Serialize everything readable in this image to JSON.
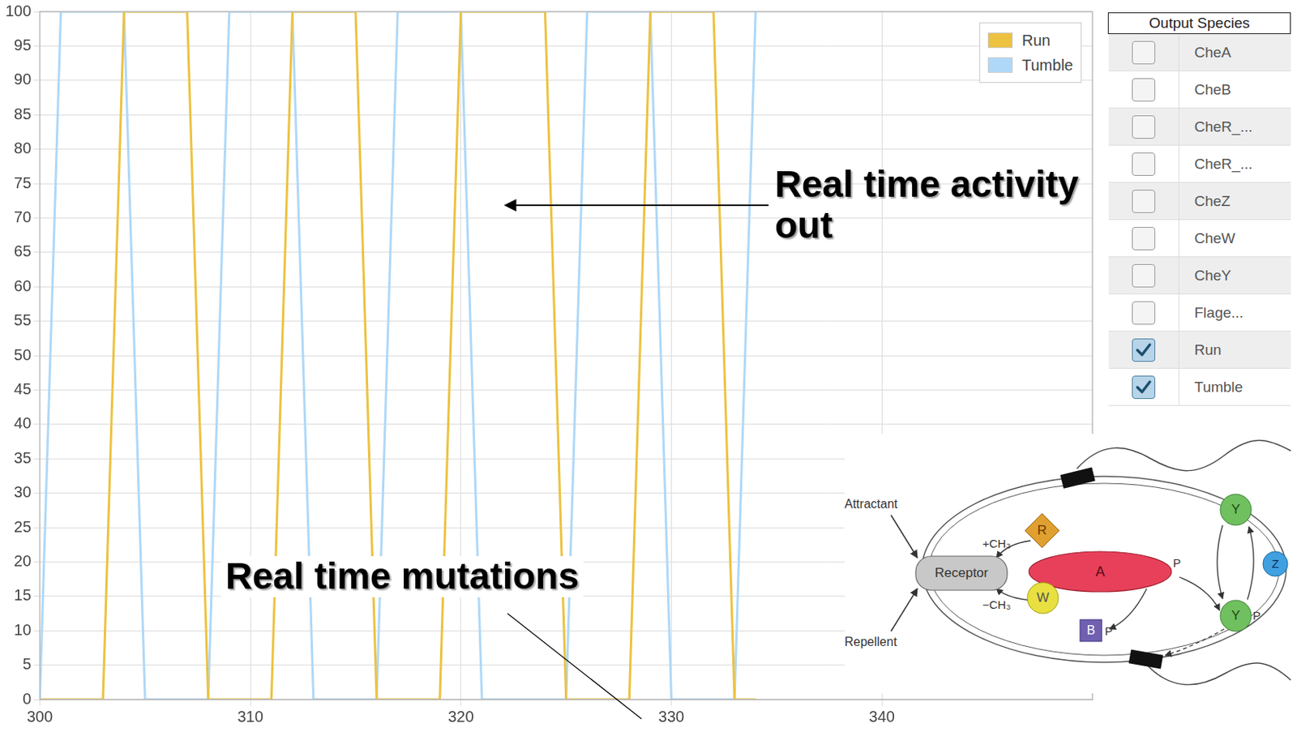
{
  "chart_data": {
    "type": "line",
    "x": [
      300,
      301,
      302,
      303,
      304,
      305,
      306,
      307,
      308,
      309,
      310,
      311,
      312,
      313,
      314,
      315,
      316,
      317,
      318,
      319,
      320,
      321,
      322,
      323,
      324,
      325,
      326,
      327,
      328,
      329,
      330,
      331,
      332,
      333,
      334
    ],
    "series": [
      {
        "name": "Run",
        "color": "#edc240",
        "values": [
          0,
          0,
          0,
          0,
          100,
          100,
          100,
          100,
          0,
          0,
          0,
          0,
          100,
          100,
          100,
          100,
          0,
          0,
          0,
          0,
          100,
          100,
          100,
          100,
          100,
          0,
          0,
          0,
          0,
          100,
          100,
          100,
          100,
          0,
          0
        ]
      },
      {
        "name": "Tumble",
        "color": "#afd8f8",
        "values": [
          0,
          100,
          100,
          100,
          100,
          0,
          0,
          0,
          0,
          100,
          100,
          100,
          100,
          0,
          0,
          0,
          0,
          100,
          100,
          100,
          100,
          0,
          0,
          0,
          0,
          0,
          100,
          100,
          100,
          100,
          0,
          0,
          0,
          0,
          100
        ]
      }
    ],
    "xlim": [
      300,
      350
    ],
    "xticks": [
      300,
      310,
      320,
      330,
      340
    ],
    "ylim": [
      0,
      100
    ],
    "yticks": [
      0,
      5,
      10,
      15,
      20,
      25,
      30,
      35,
      40,
      45,
      50,
      55,
      60,
      65,
      70,
      75,
      80,
      85,
      90,
      95,
      100
    ],
    "grid": true,
    "legend": "upper right"
  },
  "annotations": [
    "Real time activity out",
    "Real time mutations"
  ],
  "species_table": {
    "title": "Output Species",
    "rows": [
      {
        "label": "CheA",
        "checked": false
      },
      {
        "label": "CheB",
        "checked": false
      },
      {
        "label": "CheR_...",
        "checked": false
      },
      {
        "label": "CheR_...",
        "checked": false
      },
      {
        "label": "CheZ",
        "checked": false
      },
      {
        "label": "CheW",
        "checked": false
      },
      {
        "label": "CheY",
        "checked": false
      },
      {
        "label": "Flage...",
        "checked": false
      },
      {
        "label": "Run",
        "checked": true
      },
      {
        "label": "Tumble",
        "checked": true
      }
    ]
  },
  "diagram": {
    "inputs": [
      "Attractant",
      "Repellent"
    ],
    "receptor": "Receptor",
    "methylation": [
      "+CH₃",
      "−CH₃"
    ],
    "phosphate": "P",
    "proteins": {
      "methylesterase_R": "R",
      "coupler": "W",
      "kinase": "A",
      "esterase": "B",
      "regulator": "Y",
      "phosphatase": "Z"
    }
  }
}
